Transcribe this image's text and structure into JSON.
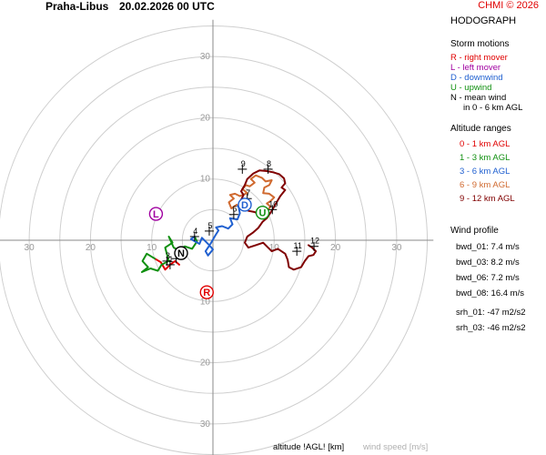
{
  "header": {
    "station": "Praha-Libus",
    "datetime": "20.02.2026 00 UTC",
    "copyright": "CHMI © 2026"
  },
  "panel": {
    "title": "HODOGRAPH",
    "storm_motions": {
      "title": "Storm motions",
      "items": [
        {
          "text": "R - right mover",
          "color": "#e00000"
        },
        {
          "text": "L - left mover",
          "color": "#a000a0"
        },
        {
          "text": "D - downwind",
          "color": "#2060d0"
        },
        {
          "text": "U - upwind",
          "color": "#109010"
        },
        {
          "text": "N - mean wind",
          "color": "#000000"
        }
      ],
      "note": "in 0 - 6 km AGL"
    },
    "altitude_ranges": {
      "title": "Altitude ranges",
      "items": [
        {
          "text": "0 - 1 km AGL",
          "color": "#e00000"
        },
        {
          "text": "1 - 3 km AGL",
          "color": "#109010"
        },
        {
          "text": "3 - 6 km AGL",
          "color": "#2060d0"
        },
        {
          "text": "6 - 9 km AGL",
          "color": "#d06a30"
        },
        {
          "text": "9 - 12 km AGL",
          "color": "#800000"
        }
      ]
    },
    "wind_profile": {
      "title": "Wind profile",
      "items": [
        {
          "label": "bwd_01:",
          "value": "7.4 m/s"
        },
        {
          "label": "bwd_03:",
          "value": "8.2 m/s"
        },
        {
          "label": "bwd_06:",
          "value": "7.2 m/s"
        },
        {
          "label": "bwd_08:",
          "value": "16.4 m/s"
        },
        {
          "label": "srh_01:",
          "value": "-47 m2/s2"
        },
        {
          "label": "srh_03:",
          "value": "-46 m2/s2"
        }
      ]
    }
  },
  "footer": {
    "altitude_label": "altitude !AGL! [km]",
    "windspeed_label": "wind speed [m/s]"
  },
  "chart_data": {
    "type": "line",
    "title": "HODOGRAPH",
    "xlabel": "",
    "ylabel": "",
    "xlim": [
      -35,
      35
    ],
    "ylim": [
      -35,
      35
    ],
    "rings": [
      10,
      20,
      30
    ],
    "grid": true,
    "axis_tick_labels": [
      "30",
      "20",
      "10"
    ],
    "series": [
      {
        "name": "0 - 1 km AGL",
        "color": "#e00000",
        "points": [
          [
            -5.5,
            -4.0
          ],
          [
            -6.2,
            -3.4
          ],
          [
            -7.0,
            -4.0
          ],
          [
            -7.8,
            -4.8
          ],
          [
            -8.5,
            -3.6
          ],
          [
            -9.5,
            -3.0
          ]
        ]
      },
      {
        "name": "1 - 3 km AGL",
        "color": "#109010",
        "points": [
          [
            -9.5,
            -3.0
          ],
          [
            -10.8,
            -2.2
          ],
          [
            -11.5,
            -3.4
          ],
          [
            -10.6,
            -4.4
          ],
          [
            -11.6,
            -5.2
          ],
          [
            -10.2,
            -4.6
          ],
          [
            -9.0,
            -5.0
          ],
          [
            -8.4,
            -4.0
          ],
          [
            -7.2,
            -3.4
          ],
          [
            -7.8,
            -1.2
          ],
          [
            -6.6,
            -0.4
          ],
          [
            -7.2,
            0.6
          ],
          [
            -6.4,
            -1.2
          ],
          [
            -5.6,
            -1.6
          ],
          [
            -4.6,
            -1.0
          ],
          [
            -3.4,
            -1.4
          ],
          [
            -2.6,
            -0.2
          ],
          [
            -3.0,
            0.6
          ]
        ]
      },
      {
        "name": "3 - 6 km AGL",
        "color": "#2060d0",
        "points": [
          [
            -3.0,
            0.6
          ],
          [
            -3.6,
            0.2
          ],
          [
            -2.2,
            -0.6
          ],
          [
            -1.8,
            0.4
          ],
          [
            -0.6,
            -0.8
          ],
          [
            0.0,
            -1.5
          ],
          [
            -0.8,
            -2.5
          ],
          [
            -1.2,
            -1.8
          ],
          [
            -0.4,
            -0.6
          ],
          [
            0.4,
            0.8
          ],
          [
            0.9,
            1.6
          ],
          [
            0.5,
            2.1
          ],
          [
            1.5,
            2.3
          ],
          [
            2.5,
            1.9
          ],
          [
            3.2,
            2.6
          ],
          [
            2.8,
            3.6
          ],
          [
            4.0,
            3.4
          ],
          [
            4.4,
            4.4
          ],
          [
            4.2,
            5.4
          ],
          [
            3.9,
            5.8
          ]
        ]
      },
      {
        "name": "6 - 9 km AGL",
        "color": "#d06a30",
        "points": [
          [
            3.9,
            5.8
          ],
          [
            3.0,
            5.2
          ],
          [
            2.6,
            6.2
          ],
          [
            3.4,
            6.8
          ],
          [
            2.8,
            7.4
          ],
          [
            3.6,
            7.6
          ],
          [
            4.4,
            7.2
          ],
          [
            5.6,
            7.7
          ],
          [
            4.8,
            8.4
          ],
          [
            5.4,
            9.0
          ],
          [
            6.0,
            8.8
          ],
          [
            6.8,
            9.4
          ],
          [
            6.2,
            10.0
          ],
          [
            7.0,
            10.6
          ],
          [
            8.0,
            10.2
          ],
          [
            8.6,
            9.6
          ],
          [
            9.6,
            9.8
          ],
          [
            9.2,
            9.0
          ],
          [
            8.4,
            8.6
          ],
          [
            8.2,
            7.7
          ],
          [
            9.2,
            7.6
          ],
          [
            10.0,
            7.0
          ],
          [
            9.4,
            6.4
          ],
          [
            8.8,
            6.0
          ],
          [
            9.4,
            5.5
          ],
          [
            9.0,
            5.0
          ]
        ]
      },
      {
        "name": "9 - 12 km AGL",
        "color": "#800000",
        "points": [
          [
            9.0,
            5.0
          ],
          [
            8.2,
            4.8
          ],
          [
            7.6,
            4.2
          ],
          [
            6.8,
            4.6
          ],
          [
            5.8,
            4.8
          ],
          [
            5.2,
            5.2
          ],
          [
            5.6,
            6.0
          ],
          [
            4.6,
            6.6
          ],
          [
            5.0,
            7.4
          ],
          [
            4.6,
            8.0
          ],
          [
            5.2,
            9.0
          ],
          [
            5.6,
            10.0
          ],
          [
            6.6,
            10.9
          ],
          [
            7.6,
            11.4
          ],
          [
            8.8,
            11.3
          ],
          [
            9.8,
            11.1
          ],
          [
            10.8,
            10.8
          ],
          [
            11.6,
            10.1
          ],
          [
            11.8,
            9.3
          ],
          [
            11.2,
            8.6
          ],
          [
            11.8,
            8.2
          ],
          [
            11.0,
            7.2
          ],
          [
            10.4,
            6.2
          ],
          [
            9.6,
            4.8
          ],
          [
            8.8,
            3.6
          ],
          [
            8.1,
            3.0
          ],
          [
            7.4,
            2.0
          ],
          [
            6.6,
            1.3
          ],
          [
            5.6,
            0.6
          ],
          [
            5.2,
            -0.4
          ],
          [
            5.8,
            -1.2
          ],
          [
            7.0,
            -0.8
          ],
          [
            8.2,
            -0.4
          ],
          [
            8.8,
            -1.0
          ],
          [
            9.6,
            -1.8
          ],
          [
            10.6,
            -1.4
          ],
          [
            11.8,
            -2.2
          ],
          [
            12.2,
            -3.2
          ],
          [
            12.4,
            -4.4
          ],
          [
            13.2,
            -4.8
          ],
          [
            14.4,
            -4.4
          ],
          [
            15.0,
            -3.4
          ],
          [
            15.6,
            -2.6
          ],
          [
            16.4,
            -2.4
          ],
          [
            16.8,
            -1.8
          ],
          [
            16.2,
            -1.2
          ],
          [
            15.6,
            -0.8
          ]
        ]
      }
    ],
    "altitude_markers": [
      {
        "km": "1",
        "x": -7.0,
        "y": -4.0
      },
      {
        "km": "2",
        "x": -6.0,
        "y": -3.0
      },
      {
        "km": "3",
        "x": -7.5,
        "y": -3.4
      },
      {
        "km": "4",
        "x": -3.0,
        "y": 0.6
      },
      {
        "km": "5",
        "x": -0.6,
        "y": 1.5
      },
      {
        "km": "6",
        "x": 3.4,
        "y": 4.2
      },
      {
        "km": "7",
        "x": 5.6,
        "y": 6.8
      },
      {
        "km": "8",
        "x": 9.0,
        "y": 11.6
      },
      {
        "km": "9",
        "x": 4.8,
        "y": 11.6
      },
      {
        "km": "10",
        "x": 9.7,
        "y": 5.0
      },
      {
        "km": "11",
        "x": 13.7,
        "y": -1.8
      },
      {
        "km": "12",
        "x": 16.5,
        "y": -1.0
      }
    ],
    "storm_motions": [
      {
        "label": "R",
        "x": -1.0,
        "y": -8.5,
        "color": "#e00000"
      },
      {
        "label": "L",
        "x": -9.3,
        "y": 4.3,
        "color": "#a000a0"
      },
      {
        "label": "D",
        "x": 5.2,
        "y": 5.8,
        "color": "#2060d0"
      },
      {
        "label": "U",
        "x": 8.1,
        "y": 4.5,
        "color": "#109010"
      },
      {
        "label": "N",
        "x": -5.2,
        "y": -2.1,
        "color": "#000000"
      }
    ]
  }
}
